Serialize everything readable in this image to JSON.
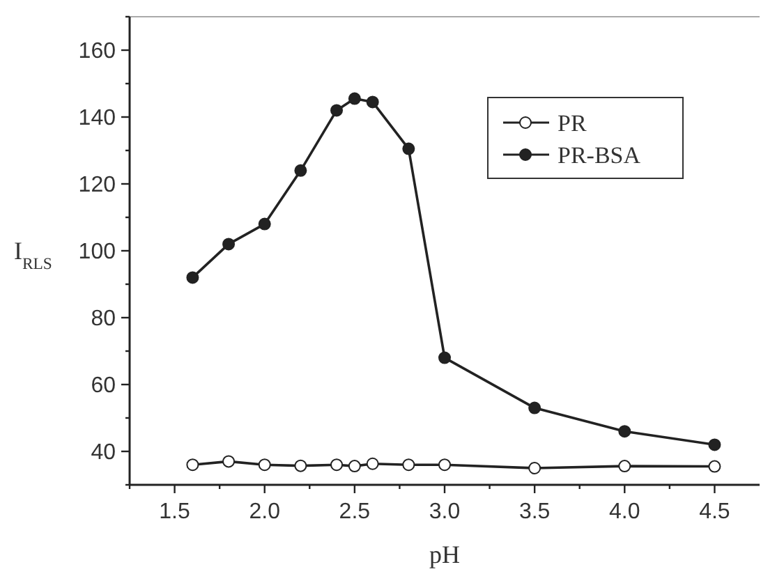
{
  "chart_data": {
    "type": "line",
    "xlabel": "pH",
    "ylabel": "I$_{RLS}$",
    "x": [
      1.6,
      1.8,
      2.0,
      2.2,
      2.4,
      2.5,
      2.6,
      2.8,
      3.0,
      3.5,
      4.0,
      4.5
    ],
    "series": [
      {
        "name": "PR",
        "color": "#222222",
        "values": [
          36,
          37,
          36,
          35.7,
          36,
          35.6,
          36.3,
          36,
          36,
          35,
          35.6,
          35.5
        ],
        "marker": "circle"
      },
      {
        "name": "PR-BSA",
        "color": "#222222",
        "values": [
          92,
          102,
          108,
          124,
          142,
          145.5,
          144.5,
          130.5,
          68,
          53,
          46,
          42
        ],
        "marker": "circle"
      }
    ],
    "xlim": [
      1.25,
      4.75
    ],
    "ylim": [
      30,
      170
    ],
    "xticks": [
      {
        "value": 1.25,
        "label": null
      },
      1.5,
      {
        "value": 1.75,
        "label": null
      },
      {
        "value": 2,
        "label": "2.0"
      },
      {
        "value": 2.25,
        "label": null
      },
      2.5,
      {
        "value": 2.75,
        "label": null
      },
      {
        "value": 3,
        "label": "3.0"
      },
      {
        "value": 3.25,
        "label": null
      },
      3.5,
      {
        "value": 3.75,
        "label": null
      },
      {
        "value": 4,
        "label": "4.0"
      },
      {
        "value": 4.25,
        "label": null
      },
      4.5
    ],
    "yticks": [
      {
        "value": 30,
        "label": null
      },
      40,
      {
        "value": 50,
        "label": null
      },
      60,
      {
        "value": 70,
        "label": null
      },
      80,
      {
        "value": 90,
        "label": null
      },
      100,
      {
        "value": 110,
        "label": null
      },
      120,
      {
        "value": 130,
        "label": null
      },
      140,
      {
        "value": 150,
        "label": null
      },
      160,
      {
        "value": 170,
        "label": null
      }
    ],
    "legend": "top right",
    "grid": false,
    "line_style": "solid"
  }
}
